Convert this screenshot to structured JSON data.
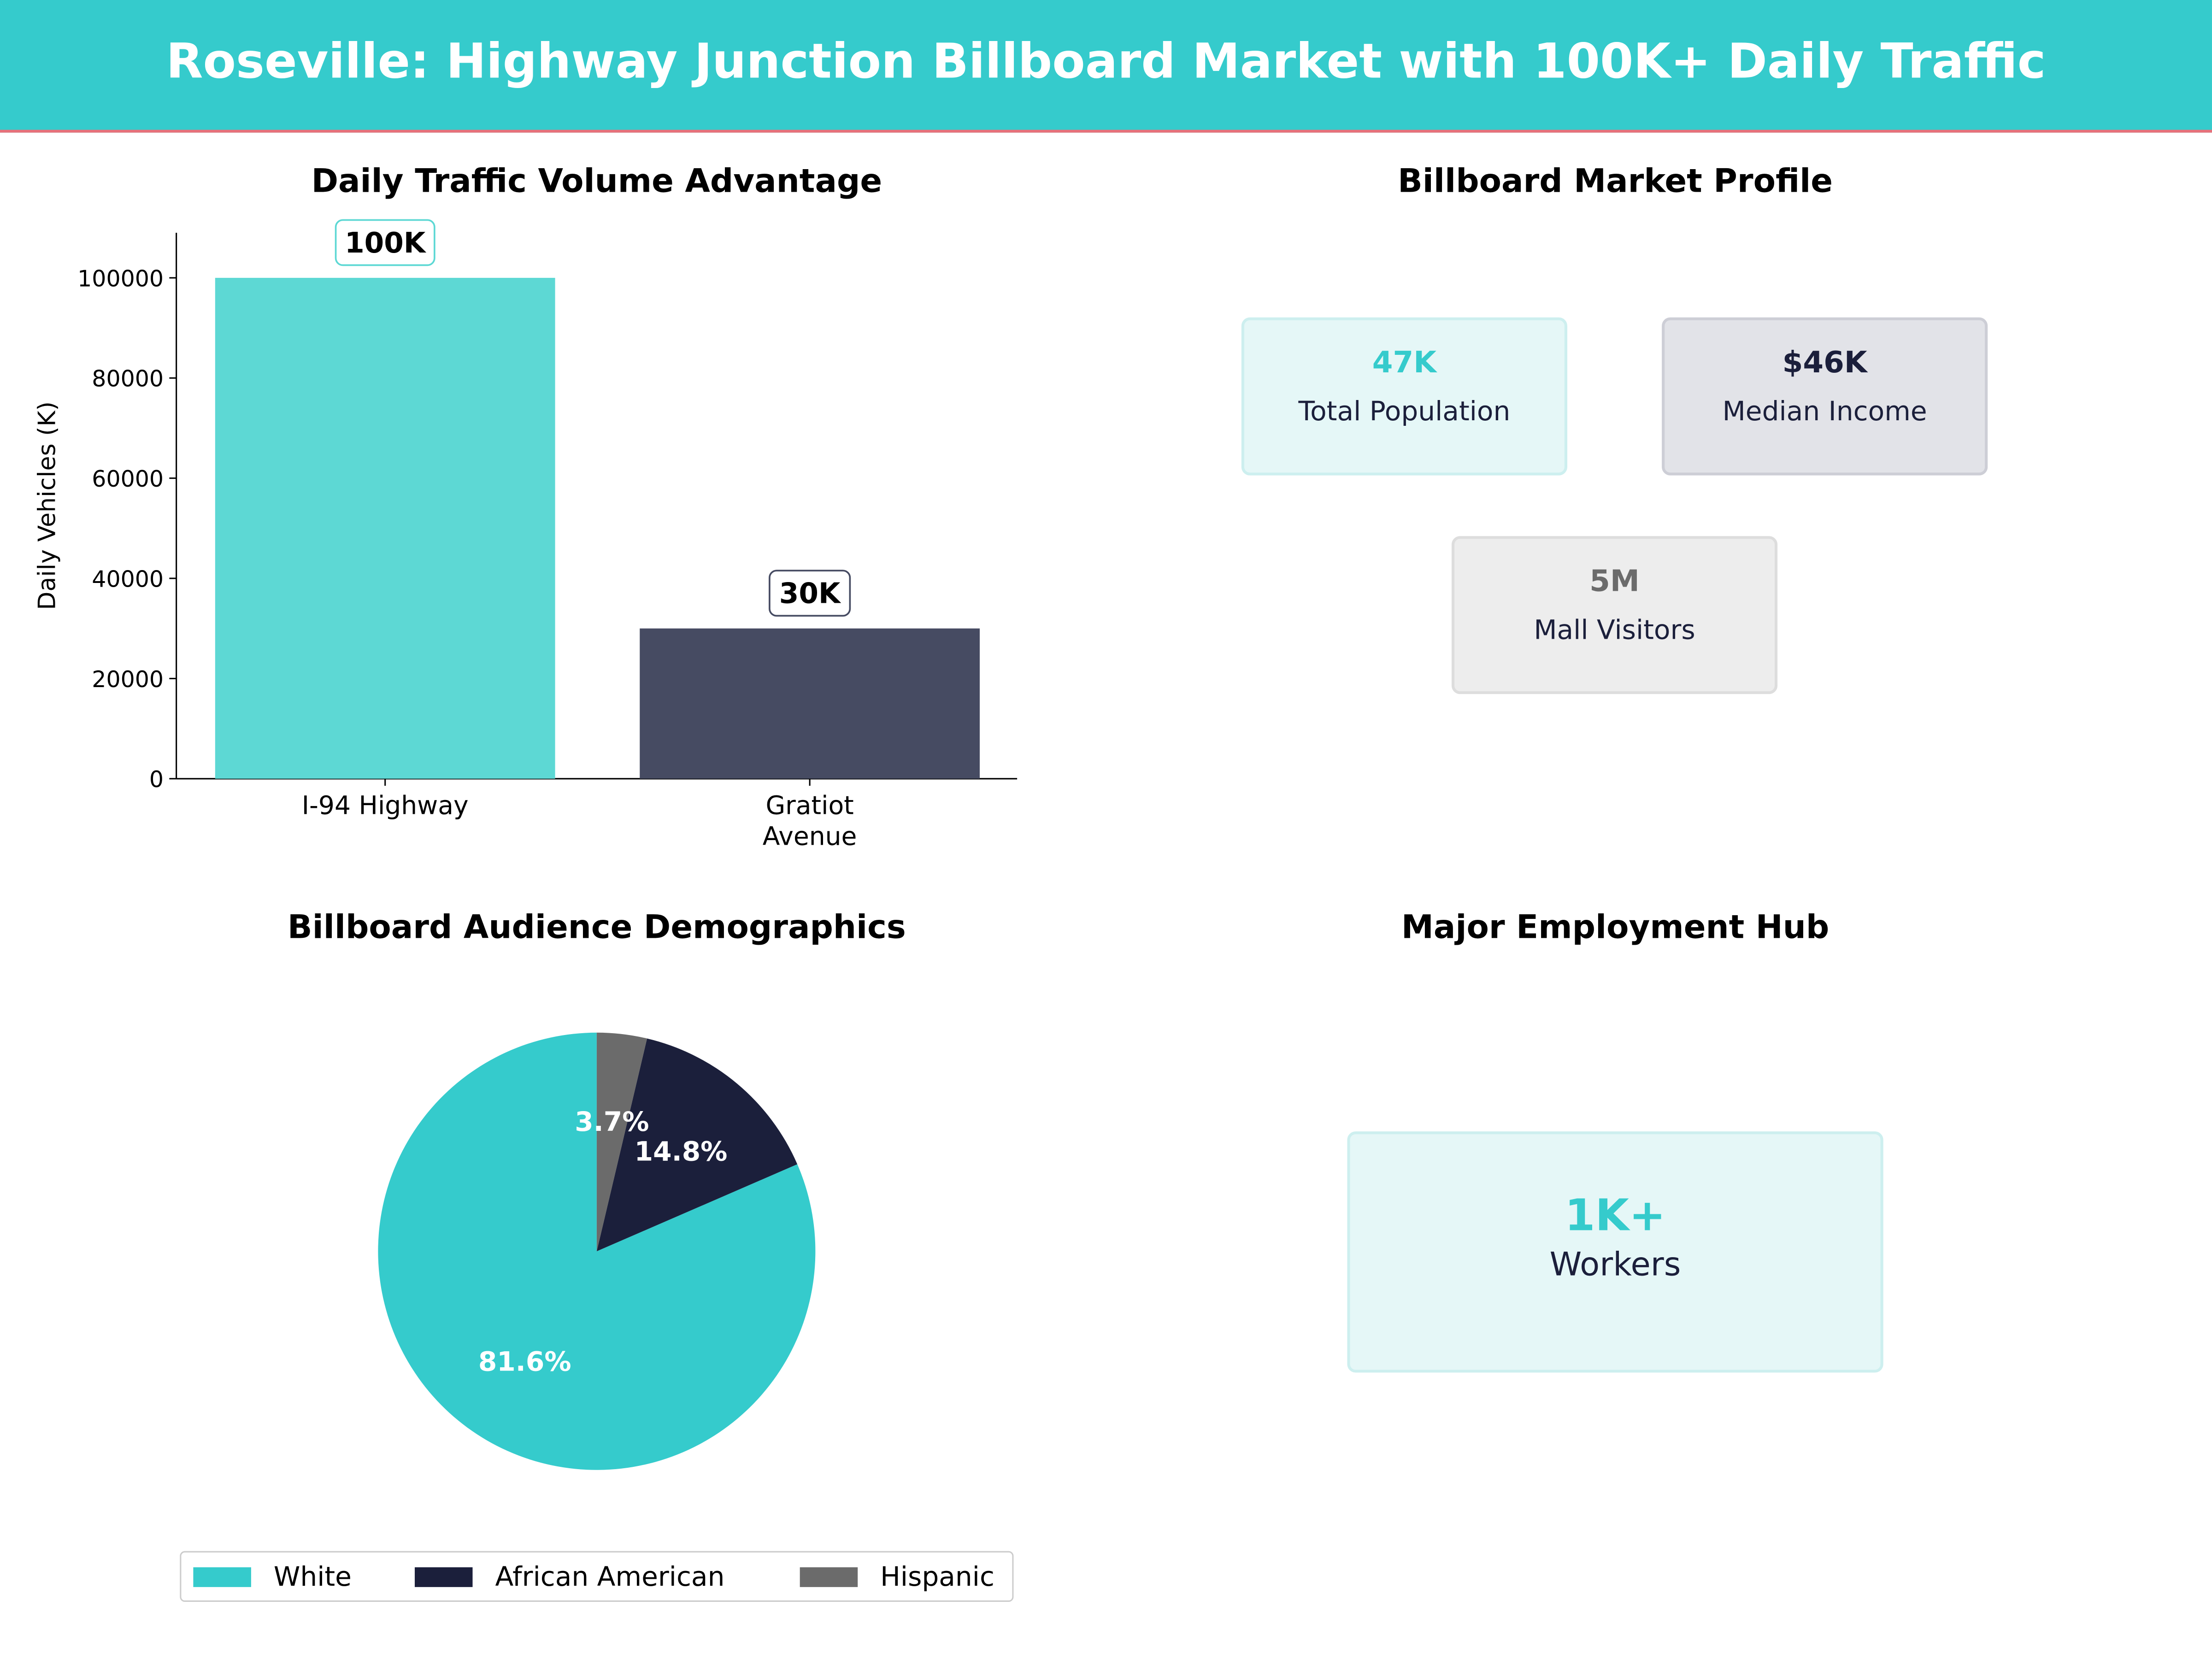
{
  "header": {
    "title": "Roseville: Highway Junction Billboard Market with 100K+ Daily Traffic"
  },
  "colors": {
    "teal": "#35CBCC",
    "teal_bar": "#5DD8D4",
    "navy_bar": "#464B62",
    "navy": "#1B1F3B",
    "gray": "#6B6B6B",
    "accent_line": "#E8707A"
  },
  "chart_data": [
    {
      "type": "bar",
      "title": "Daily Traffic Volume Advantage",
      "xlabel": "",
      "ylabel": "Daily Vehicles (K)",
      "categories": [
        "I-94 Highway",
        "Gratiot Avenue"
      ],
      "category_lines": [
        [
          "I-94 Highway"
        ],
        [
          "Gratiot",
          "Avenue"
        ]
      ],
      "values": [
        100000,
        30000
      ],
      "data_labels": [
        "100K",
        "30K"
      ],
      "ylim": [
        0,
        109000
      ],
      "yticks": [
        0,
        20000,
        40000,
        60000,
        80000,
        100000
      ],
      "ytick_labels": [
        "0",
        "20000",
        "40000",
        "60000",
        "80000",
        "100000"
      ],
      "grid": false
    },
    {
      "type": "pie",
      "title": "Billboard Audience Demographics",
      "labels": [
        "White",
        "African American",
        "Hispanic"
      ],
      "values": [
        81.6,
        14.8,
        3.7
      ],
      "value_labels": [
        "81.6%",
        "14.8%",
        "3.7%"
      ],
      "colors": [
        "#35CBCC",
        "#1B1F3B",
        "#6B6B6B"
      ],
      "legend": "bottom",
      "start_angle": 90
    }
  ],
  "profile": {
    "title": "Billboard Market Profile",
    "cards": [
      {
        "value": "47K",
        "label": "Total Population"
      },
      {
        "value": "$46K",
        "label": "Median Income"
      },
      {
        "value": "5M",
        "label": "Mall Visitors"
      }
    ]
  },
  "employment": {
    "title": "Major Employment Hub",
    "value": "1K+",
    "label": "Workers"
  }
}
